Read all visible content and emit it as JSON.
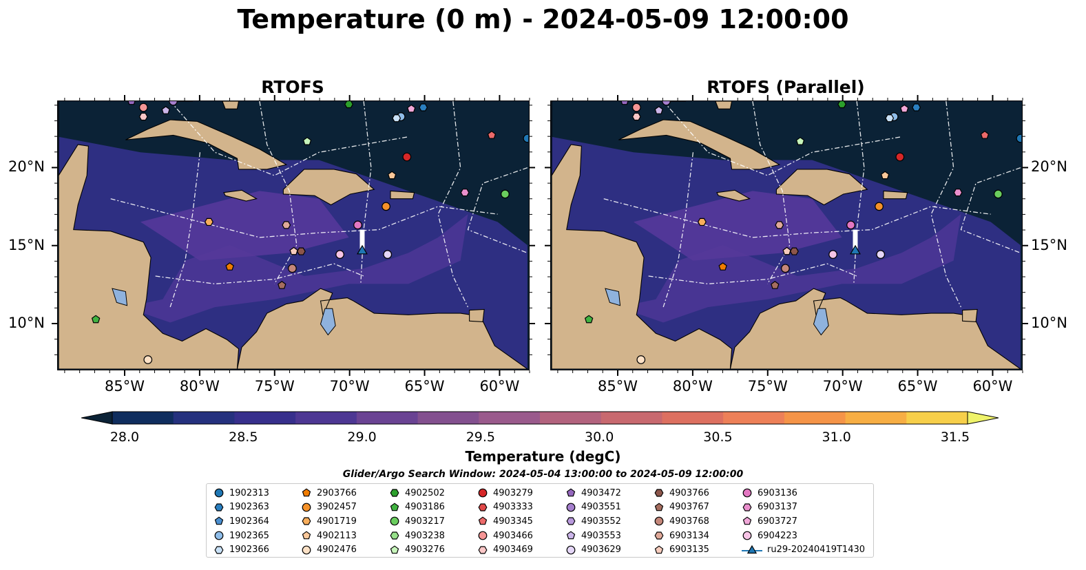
{
  "title": "Temperature (0 m) - 2024-05-09 12:00:00",
  "panels": [
    {
      "title": "RTOFS"
    },
    {
      "title": "RTOFS (Parallel)"
    }
  ],
  "map": {
    "extent": {
      "lon_min": -89.5,
      "lon_max": -58.0,
      "lat_min": 7.0,
      "lat_max": 24.3
    },
    "lon_ticks": [
      {
        "value": -85,
        "label": "85°W"
      },
      {
        "value": -80,
        "label": "80°W"
      },
      {
        "value": -75,
        "label": "75°W"
      },
      {
        "value": -70,
        "label": "70°W"
      },
      {
        "value": -65,
        "label": "65°W"
      },
      {
        "value": -60,
        "label": "60°W"
      }
    ],
    "lat_ticks": [
      {
        "value": 20,
        "label": "20°N"
      },
      {
        "value": 15,
        "label": "15°N"
      },
      {
        "value": 10,
        "label": "10°N"
      }
    ],
    "colors": {
      "ocean_cold": "#0b2236",
      "ocean_mid": "#3a3288",
      "ocean_warm": "#7a4a96",
      "land": "#d2b48c",
      "lake": "#8fb2dd",
      "boundary": "#ffffff"
    }
  },
  "colorbar": {
    "label": "Temperature (degC)",
    "min": 28.0,
    "max": 31.5,
    "ticks": [
      {
        "value": 28.0,
        "label": "28.0"
      },
      {
        "value": 28.5,
        "label": "28.5"
      },
      {
        "value": 29.0,
        "label": "29.0"
      },
      {
        "value": 29.5,
        "label": "29.5"
      },
      {
        "value": 30.0,
        "label": "30.0"
      },
      {
        "value": 30.5,
        "label": "30.5"
      },
      {
        "value": 31.0,
        "label": "31.0"
      },
      {
        "value": 31.5,
        "label": "31.5"
      }
    ],
    "colors": [
      "#0b2236",
      "#0f2d5e",
      "#25317e",
      "#372f8c",
      "#4d3793",
      "#6a4393",
      "#83508f",
      "#9a5a8c",
      "#b3637e",
      "#c8696f",
      "#dd7060",
      "#ed8058",
      "#f59448",
      "#f7ae44",
      "#f7cf4a",
      "#eff36a"
    ]
  },
  "search_window": "Glider/Argo Search Window: 2024-05-04 13:00:00 to 2024-05-09 12:00:00",
  "legend": [
    {
      "label": "1902313",
      "marker": "circle",
      "color": "#1f77b4"
    },
    {
      "label": "1902363",
      "marker": "hexagon",
      "color": "#2a7fc0"
    },
    {
      "label": "1902364",
      "marker": "pentagon",
      "color": "#4a8fd0"
    },
    {
      "label": "1902365",
      "marker": "circle",
      "color": "#8fbde9"
    },
    {
      "label": "1902366",
      "marker": "hexagon",
      "color": "#c9e1f7"
    },
    {
      "label": "2903766",
      "marker": "pentagon",
      "color": "#f07c00"
    },
    {
      "label": "3902457",
      "marker": "circle",
      "color": "#f5922a"
    },
    {
      "label": "4901719",
      "marker": "hexagon",
      "color": "#f8ae5c"
    },
    {
      "label": "4902113",
      "marker": "pentagon",
      "color": "#fbc89a"
    },
    {
      "label": "4902476",
      "marker": "circle",
      "color": "#fde1c6"
    },
    {
      "label": "4902502",
      "marker": "hexagon",
      "color": "#2ca02c"
    },
    {
      "label": "4903186",
      "marker": "pentagon",
      "color": "#41b341"
    },
    {
      "label": "4903217",
      "marker": "circle",
      "color": "#6acd5e"
    },
    {
      "label": "4903238",
      "marker": "hexagon",
      "color": "#97e08a"
    },
    {
      "label": "4903276",
      "marker": "pentagon",
      "color": "#c7f5bb"
    },
    {
      "label": "4903279",
      "marker": "circle",
      "color": "#d62728"
    },
    {
      "label": "4903333",
      "marker": "hexagon",
      "color": "#e14848"
    },
    {
      "label": "4903345",
      "marker": "pentagon",
      "color": "#ec6a6a"
    },
    {
      "label": "4903466",
      "marker": "circle",
      "color": "#f59595"
    },
    {
      "label": "4903469",
      "marker": "hexagon",
      "color": "#fbc7c7"
    },
    {
      "label": "4903472",
      "marker": "pentagon",
      "color": "#9467bd"
    },
    {
      "label": "4903551",
      "marker": "circle",
      "color": "#a57fcd"
    },
    {
      "label": "4903552",
      "marker": "hexagon",
      "color": "#b899dc"
    },
    {
      "label": "4903553",
      "marker": "pentagon",
      "color": "#ccb6ea"
    },
    {
      "label": "4903629",
      "marker": "circle",
      "color": "#e4d6f7"
    },
    {
      "label": "4903766",
      "marker": "hexagon",
      "color": "#8c564b"
    },
    {
      "label": "4903767",
      "marker": "pentagon",
      "color": "#a56d5f"
    },
    {
      "label": "4903768",
      "marker": "circle",
      "color": "#c4877a"
    },
    {
      "label": "6903134",
      "marker": "hexagon",
      "color": "#e0a999"
    },
    {
      "label": "6903135",
      "marker": "pentagon",
      "color": "#f6ccbd"
    },
    {
      "label": "6903136",
      "marker": "circle",
      "color": "#e377c2"
    },
    {
      "label": "6903137",
      "marker": "hexagon",
      "color": "#ea8fcd"
    },
    {
      "label": "6903727",
      "marker": "pentagon",
      "color": "#f1a8d9"
    },
    {
      "label": "6904223",
      "marker": "circle",
      "color": "#f7c4e6"
    },
    {
      "label": "ru29-20240419T1430",
      "marker": "triangle-line",
      "color": "#1f77b4"
    }
  ],
  "floats": [
    {
      "id": "1902313",
      "lon": -58.0,
      "lat": 21.9
    },
    {
      "id": "1902363",
      "lon": -65.0,
      "lat": 23.9
    },
    {
      "id": "1902365",
      "lon": -66.5,
      "lat": 23.3
    },
    {
      "id": "1902366",
      "lon": -66.8,
      "lat": 23.2
    },
    {
      "id": "2903766",
      "lon": -78.0,
      "lat": 13.6
    },
    {
      "id": "3902457",
      "lon": -67.5,
      "lat": 17.5
    },
    {
      "id": "4901719",
      "lon": -79.4,
      "lat": 16.5
    },
    {
      "id": "4902113",
      "lon": -67.1,
      "lat": 19.5
    },
    {
      "id": "4902476",
      "lon": -83.5,
      "lat": 7.6
    },
    {
      "id": "4902502",
      "lon": -70.0,
      "lat": 24.1
    },
    {
      "id": "4903186",
      "lon": -87.0,
      "lat": 10.2
    },
    {
      "id": "4903217",
      "lon": -59.5,
      "lat": 18.3
    },
    {
      "id": "4903276",
      "lon": -72.8,
      "lat": 21.7
    },
    {
      "id": "4903279",
      "lon": -66.1,
      "lat": 20.7
    },
    {
      "id": "4903345",
      "lon": -60.4,
      "lat": 22.1
    },
    {
      "id": "4903466",
      "lon": -83.8,
      "lat": 23.9
    },
    {
      "id": "4903469",
      "lon": -83.8,
      "lat": 23.3
    },
    {
      "id": "4903472",
      "lon": -84.6,
      "lat": 24.3
    },
    {
      "id": "4903551",
      "lon": -81.8,
      "lat": 24.3
    },
    {
      "id": "4903553",
      "lon": -82.3,
      "lat": 23.7
    },
    {
      "id": "4903629",
      "lon": -67.4,
      "lat": 14.4
    },
    {
      "id": "4903766",
      "lon": -73.2,
      "lat": 14.6
    },
    {
      "id": "4903767",
      "lon": -74.5,
      "lat": 12.4
    },
    {
      "id": "4903768",
      "lon": -73.8,
      "lat": 13.5
    },
    {
      "id": "6903134",
      "lon": -74.2,
      "lat": 16.3
    },
    {
      "id": "6903135",
      "lon": -73.7,
      "lat": 14.6
    },
    {
      "id": "6903136",
      "lon": -69.4,
      "lat": 16.3
    },
    {
      "id": "6903137",
      "lon": -62.2,
      "lat": 18.4
    },
    {
      "id": "6903727",
      "lon": -65.8,
      "lat": 23.8
    },
    {
      "id": "6904223",
      "lon": -70.6,
      "lat": 14.4
    }
  ],
  "glider": {
    "id": "ru29-20240419T1430",
    "lon": -69.1,
    "lat": 14.7,
    "track_end_lat": 16.0
  }
}
